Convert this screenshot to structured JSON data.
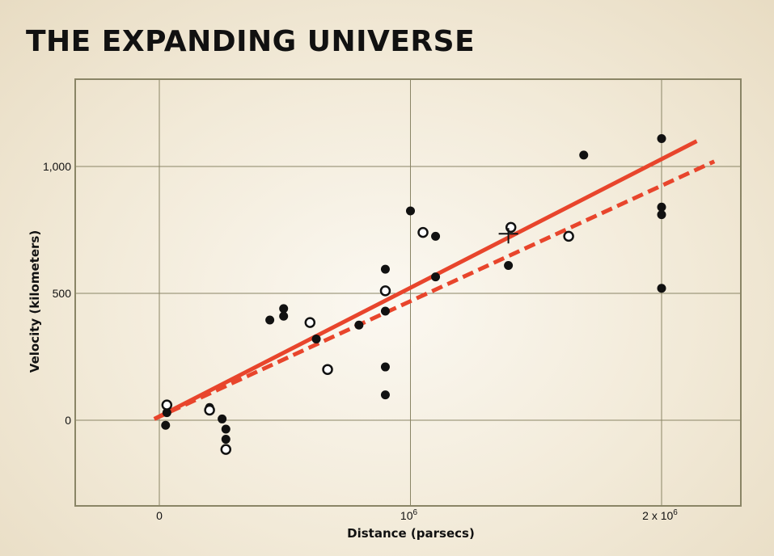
{
  "chart_data": {
    "type": "scatter",
    "title": "THE EXPANDING UNIVERSE",
    "xlabel": "Distance (parsecs)",
    "ylabel": "Velocity (kilometers)",
    "xlim": [
      -320000,
      2300000
    ],
    "ylim": [
      -330000,
      1340
    ],
    "x_ticks": [
      {
        "value": 0,
        "label": "0"
      },
      {
        "value": 1000000,
        "label": "10",
        "sup": "6"
      },
      {
        "value": 2000000,
        "label": "2 x 10",
        "sup": "6"
      }
    ],
    "y_ticks": [
      {
        "value": 0,
        "label": "0"
      },
      {
        "value": 500,
        "label": "500"
      },
      {
        "value": 1000,
        "label": "1,000"
      }
    ],
    "grid": true,
    "colors": {
      "line": "#e8452c",
      "frame": "#8a8566",
      "grid": "#8a8566",
      "point": "#111111"
    },
    "series": [
      {
        "marker": "filled",
        "points": [
          [
            30000,
            30
          ],
          [
            25000,
            -20
          ],
          [
            200000,
            50
          ],
          [
            250000,
            5
          ],
          [
            265000,
            -35
          ],
          [
            265000,
            -75
          ],
          [
            440000,
            395
          ],
          [
            495000,
            440
          ],
          [
            495000,
            410
          ],
          [
            625000,
            320
          ],
          [
            795000,
            375
          ],
          [
            900000,
            595
          ],
          [
            900000,
            430
          ],
          [
            900000,
            210
          ],
          [
            900000,
            100
          ],
          [
            1000000,
            825
          ],
          [
            1100000,
            725
          ],
          [
            1100000,
            565
          ],
          [
            1390000,
            610
          ],
          [
            1690000,
            1045
          ],
          [
            2000000,
            1110
          ],
          [
            2000000,
            840
          ],
          [
            2000000,
            810
          ],
          [
            2000000,
            520
          ]
        ]
      },
      {
        "marker": "open",
        "points": [
          [
            30000,
            60
          ],
          [
            200000,
            40
          ],
          [
            265000,
            -115
          ],
          [
            600000,
            385
          ],
          [
            670000,
            200
          ],
          [
            900000,
            510
          ],
          [
            1050000,
            740
          ],
          [
            1400000,
            760
          ],
          [
            1630000,
            725
          ]
        ]
      },
      {
        "marker": "cross",
        "points": [
          [
            1390000,
            735
          ]
        ]
      }
    ],
    "fit_lines": [
      {
        "style": "solid",
        "points": [
          [
            -20000,
            5
          ],
          [
            2140000,
            1100
          ]
        ]
      },
      {
        "style": "dashed",
        "points": [
          [
            -20000,
            5
          ],
          [
            2210000,
            1020
          ]
        ]
      }
    ]
  }
}
